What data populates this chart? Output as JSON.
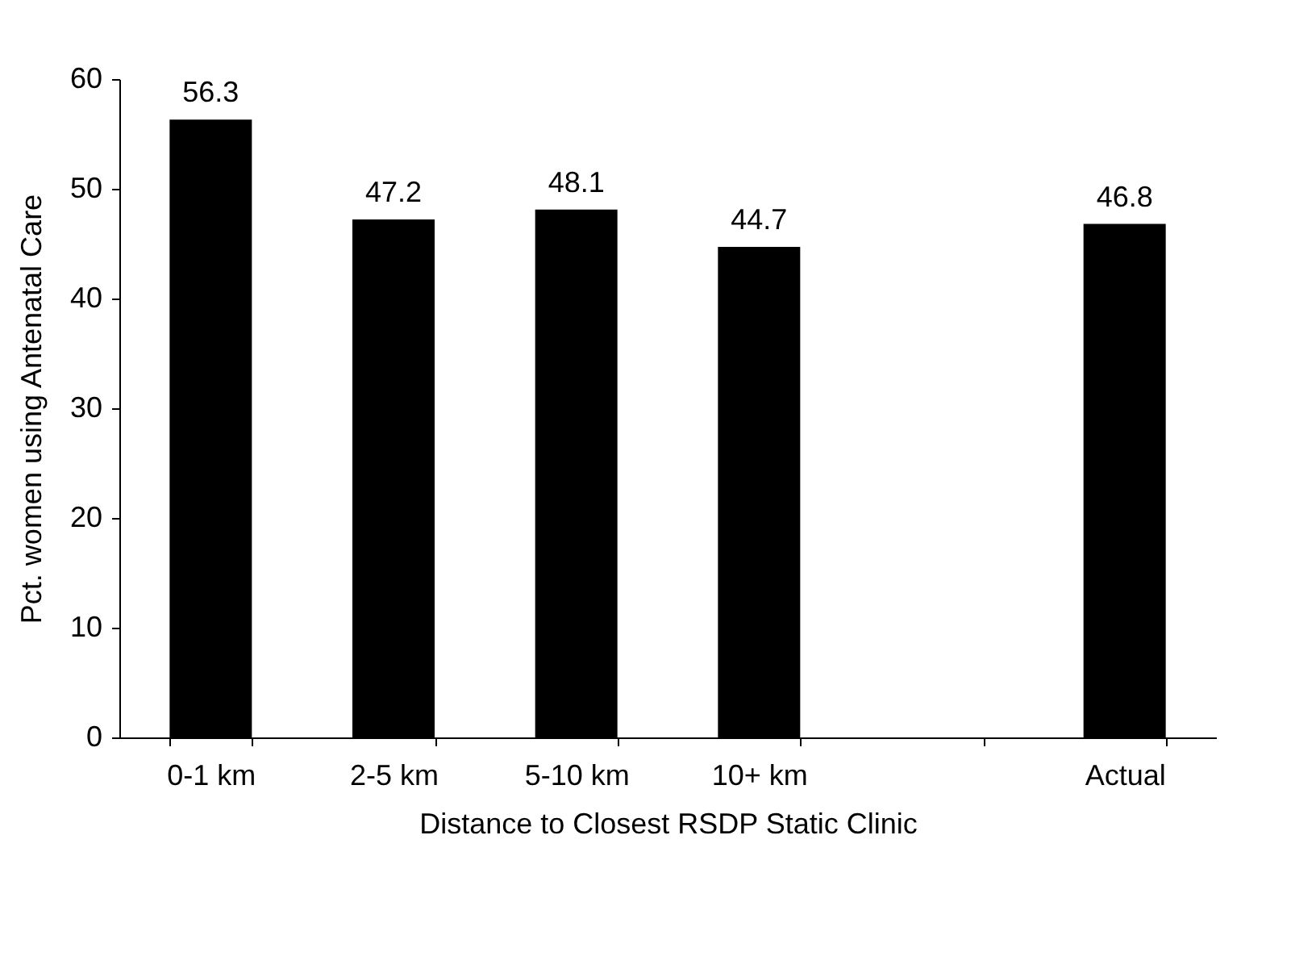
{
  "chart_data": {
    "type": "bar",
    "xlabel": "Distance to Closest RSDP Static Clinic",
    "ylabel": "Pct. women using Antenatal Care",
    "categories": [
      "0-1 km",
      "2-5 km",
      "5-10 km",
      "10+ km",
      null,
      "Actual"
    ],
    "values": [
      56.3,
      47.2,
      48.1,
      44.7,
      null,
      46.8
    ],
    "color": "#000000",
    "ylim": [
      0,
      60
    ],
    "yticks": [
      0,
      10,
      20,
      30,
      40,
      50,
      60
    ],
    "data_labels": true,
    "grid": false
  }
}
